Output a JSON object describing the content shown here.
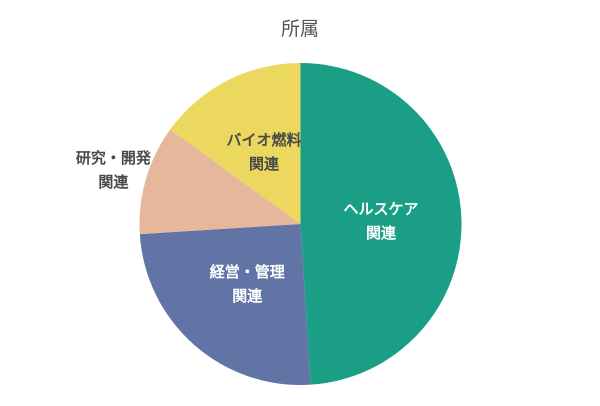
{
  "chart_data": {
    "type": "pie",
    "title": "所属",
    "categories": [
      "ヘルスケア\n関連",
      "経営・管理\n関連",
      "研究・開発\n関連",
      "バイオ燃料\n関連"
    ],
    "values": [
      49,
      25,
      11,
      15
    ],
    "colors": [
      "#1a9e85",
      "#6074a6",
      "#e6b79a",
      "#ecd85e"
    ]
  }
}
